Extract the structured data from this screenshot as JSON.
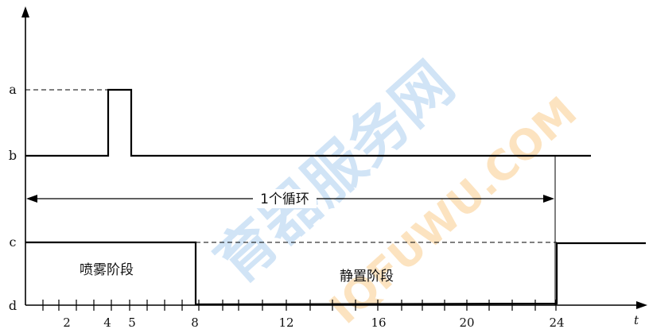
{
  "diagram": {
    "y_labels": {
      "a": "a",
      "b": "b",
      "c": "c",
      "d": "d"
    },
    "x_ticks": [
      "2",
      "4",
      "5",
      "8",
      "12",
      "16",
      "20",
      "24"
    ],
    "x_axis_label": "t",
    "cycle_label": "1个循环",
    "spray_phase_label": "喷雾阶段",
    "rest_phase_label": "静置阶段"
  },
  "watermark": {
    "text_main": "育器服务网",
    "text_sub": "IQFUWU.COM",
    "color_main": "#2f86d6",
    "color_sub": "#f39a1e"
  }
}
